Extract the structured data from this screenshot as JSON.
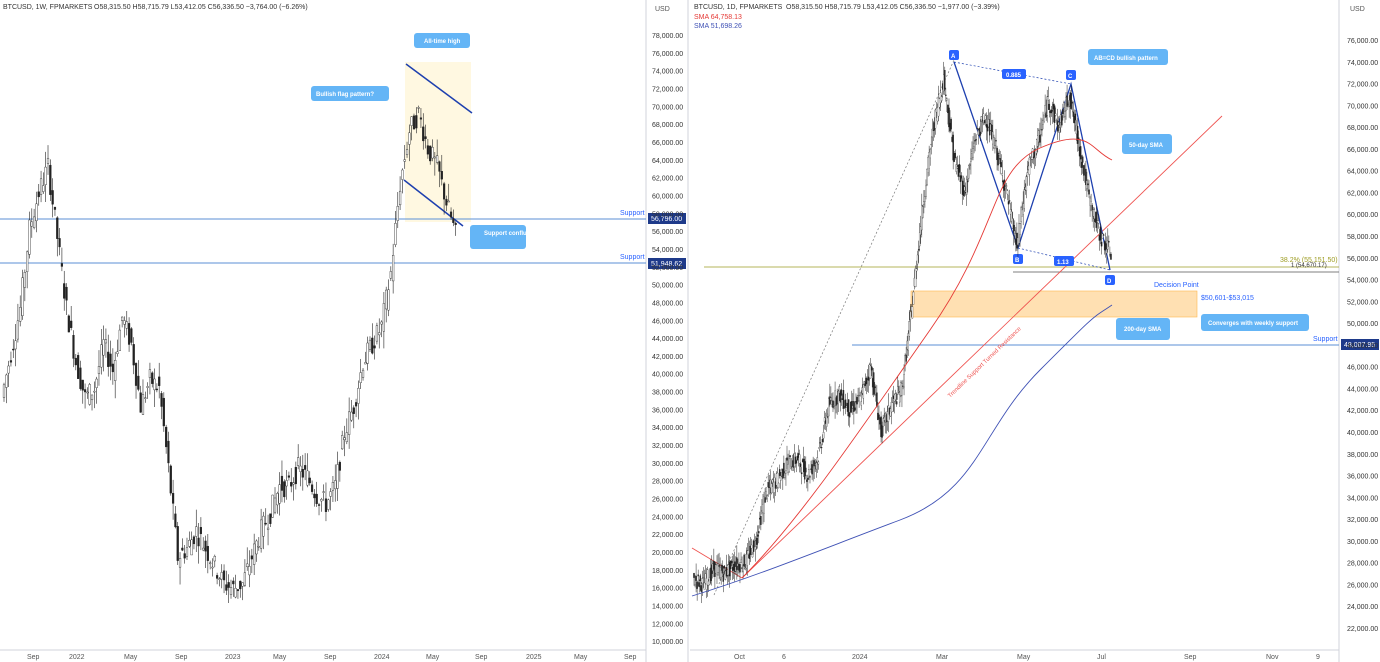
{
  "chart_data": [
    {
      "type": "candlestick",
      "header": {
        "symbol": "BTCUSD, 1W, FPMARKETS",
        "ohlc": "O58,315.50  H58,715.79  L53,412.05  C56,336.50  −3,764.00 (−6.26%)"
      },
      "y_axis_unit": "USD",
      "y_ticks": [
        "78,000.00",
        "76,000.00",
        "74,000.00",
        "72,000.00",
        "70,000.00",
        "68,000.00",
        "66,000.00",
        "64,000.00",
        "62,000.00",
        "60,000.00",
        "58,000.00",
        "56,000.00",
        "54,000.00",
        "52,000.00",
        "50,000.00",
        "48,000.00",
        "46,000.00",
        "44,000.00",
        "42,000.00",
        "40,000.00",
        "38,000.00",
        "36,000.00",
        "34,000.00",
        "32,000.00",
        "30,000.00",
        "28,000.00",
        "26,000.00",
        "24,000.00",
        "22,000.00",
        "20,000.00",
        "18,000.00",
        "16,000.00",
        "14,000.00",
        "12,000.00",
        "10,000.00"
      ],
      "x_ticks": [
        "Sep",
        "2022",
        "May",
        "Sep",
        "2023",
        "May",
        "Sep",
        "2024",
        "May",
        "Sep",
        "2025",
        "May",
        "Sep"
      ],
      "price_labels": [
        "56,796.00",
        "51,948.62"
      ],
      "support_label": "Support",
      "callouts": [
        "All-time high",
        "Bullish flag pattern?",
        "Support confluence?"
      ],
      "weekly_closes": [
        38000,
        43000,
        48000,
        57000,
        61000,
        64000,
        56000,
        48000,
        42000,
        38000,
        39000,
        44000,
        41000,
        47000,
        44000,
        37000,
        40000,
        39000,
        30000,
        20000,
        21000,
        23000,
        21000,
        19000,
        17000,
        16500,
        17000,
        20000,
        23000,
        25000,
        28000,
        28000,
        30000,
        29000,
        27000,
        26000,
        28000,
        34000,
        37000,
        42000,
        44000,
        46000,
        52000,
        62000,
        68000,
        70000,
        66000,
        64000,
        60000,
        56336
      ]
    },
    {
      "type": "candlestick",
      "header": {
        "symbol": "BTCUSD, 1D, FPMARKETS",
        "ohlc": "O58,315.50  H58,715.79  L53,412.05  C56,336.50  −1,977.00 (−3.39%)",
        "sma1": "SMA  64,758.13",
        "sma2": "SMA  51,698.26"
      },
      "y_axis_unit": "USD",
      "y_ticks": [
        "76,000.00",
        "74,000.00",
        "72,000.00",
        "70,000.00",
        "68,000.00",
        "66,000.00",
        "64,000.00",
        "62,000.00",
        "60,000.00",
        "58,000.00",
        "56,000.00",
        "54,000.00",
        "52,000.00",
        "50,000.00",
        "48,000.00",
        "46,000.00",
        "44,000.00",
        "42,000.00",
        "40,000.00",
        "38,000.00",
        "36,000.00",
        "34,000.00",
        "32,000.00",
        "30,000.00",
        "28,000.00",
        "26,000.00",
        "24,000.00",
        "22,000.00"
      ],
      "x_ticks": [
        "Oct",
        "6",
        "2024",
        "Mar",
        "May",
        "Jul",
        "Sep",
        "Nov",
        "9"
      ],
      "price_labels": [
        "48,007.95"
      ],
      "support_label": "Support",
      "callouts": [
        "AB=CD bullish pattern",
        "50-day SMA",
        "200-day SMA",
        "Converges with weekly support"
      ],
      "pattern_points": [
        "A",
        "B",
        "C",
        "D"
      ],
      "ratios": [
        "0.885",
        "1.13"
      ],
      "fib_label": "38.2% (55,151.50)",
      "ab_cd_label": "1 (54,670.17)",
      "decision_point": "Decision Point",
      "zone_label": "$50,601-$53,015",
      "trendline_label": "Trendline Support Turned Resistance",
      "daily_path": [
        26500,
        26000,
        27500,
        27000,
        27800,
        28000,
        30000,
        34500,
        35500,
        37000,
        37500,
        36000,
        37800,
        42500,
        43500,
        42000,
        43000,
        46000,
        40000,
        42500,
        44000,
        52000,
        61000,
        68000,
        72500,
        65000,
        62000,
        67000,
        69000,
        66000,
        62000,
        57000,
        64000,
        66500,
        70500,
        68000,
        71000,
        66000,
        61000,
        58000,
        56336
      ]
    }
  ]
}
